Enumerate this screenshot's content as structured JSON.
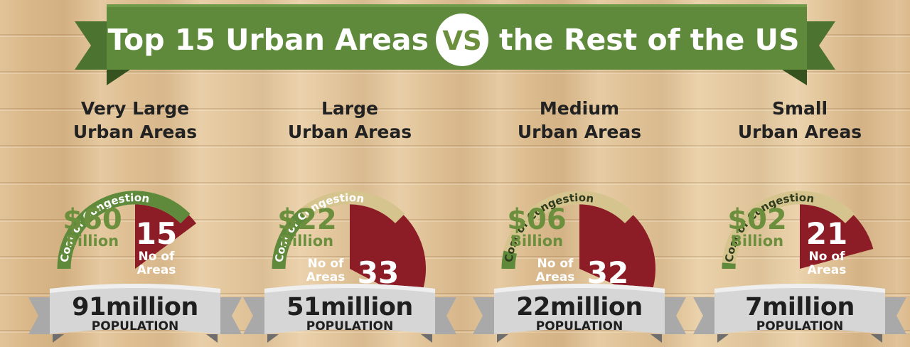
{
  "title": {
    "part1": "Top 15 Urban Areas",
    "vs": "VS",
    "part2": "the Rest of the US"
  },
  "colors": {
    "banner_green": "#5f8a3c",
    "pie_red": "#8c1c26",
    "arc_green": "#5f8a3c",
    "arc_track": "#d6c48f",
    "text_green": "#6c8f3e",
    "ribbon": "#d6d6d6"
  },
  "arc_label": "Cost of Congestion",
  "cost_unit": "Billion",
  "count_label_line1": "No of",
  "count_label_line2": "Areas",
  "population_label": "POPULATION",
  "chart_data": {
    "type": "pie",
    "title": "Top 15 Urban Areas VS the Rest of the US",
    "arc_max_billion": 60,
    "total_areas": 101,
    "categories": [
      "Very Large Urban Areas",
      "Large Urban Areas",
      "Medium Urban Areas",
      "Small Urban Areas"
    ],
    "panels": [
      {
        "title_line1": "Very Large",
        "title_line2": "Urban Areas",
        "cost_display": "$60",
        "cost_billion": 60,
        "areas_display": "15",
        "areas": 15,
        "population_display": "91million",
        "population_million": 91
      },
      {
        "title_line1": "Large",
        "title_line2": "Urban Areas",
        "cost_display": "$22",
        "cost_billion": 22,
        "areas_display": "33",
        "areas": 33,
        "population_display": "51million",
        "population_million": 51
      },
      {
        "title_line1": "Medium",
        "title_line2": "Urban Areas",
        "cost_display": "$06",
        "cost_billion": 6,
        "areas_display": "32",
        "areas": 32,
        "population_display": "22million",
        "population_million": 22
      },
      {
        "title_line1": "Small",
        "title_line2": "Urban Areas",
        "cost_display": "$02",
        "cost_billion": 2,
        "areas_display": "21",
        "areas": 21,
        "population_display": "7million",
        "population_million": 7
      }
    ]
  }
}
